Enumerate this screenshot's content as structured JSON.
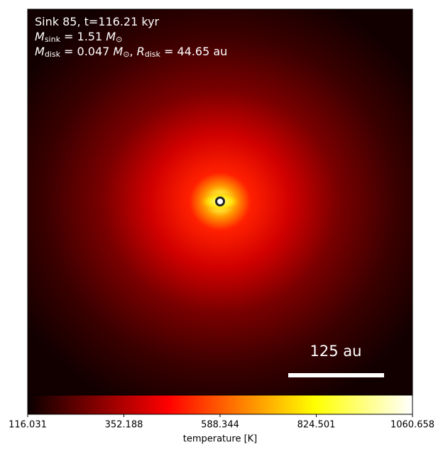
{
  "chart_data": {
    "type": "image",
    "annotation_lines": [
      [
        {
          "text": "Sink 85, t=116.21 kyr"
        }
      ],
      [
        {
          "text": "M",
          "italic": true
        },
        {
          "text": "sink",
          "sub": true
        },
        {
          "text": " = 1.51 "
        },
        {
          "text": "M",
          "italic": true
        },
        {
          "text": "⊙",
          "sub": true
        }
      ],
      [
        {
          "text": "M",
          "italic": true
        },
        {
          "text": "disk",
          "sub": true
        },
        {
          "text": " = 0.047 "
        },
        {
          "text": "M",
          "italic": true
        },
        {
          "text": "⊙",
          "sub": true
        },
        {
          "text": ", "
        },
        {
          "text": "R",
          "italic": true
        },
        {
          "text": "disk",
          "sub": true
        },
        {
          "text": " = 44.65 au"
        }
      ]
    ],
    "scale_bar_label": "125 au",
    "colorbar": {
      "label": "temperature [K]",
      "xlim": [
        116.031,
        1060.658
      ],
      "xticks": [
        116.031,
        352.188,
        588.344,
        824.501,
        1060.658
      ]
    }
  }
}
